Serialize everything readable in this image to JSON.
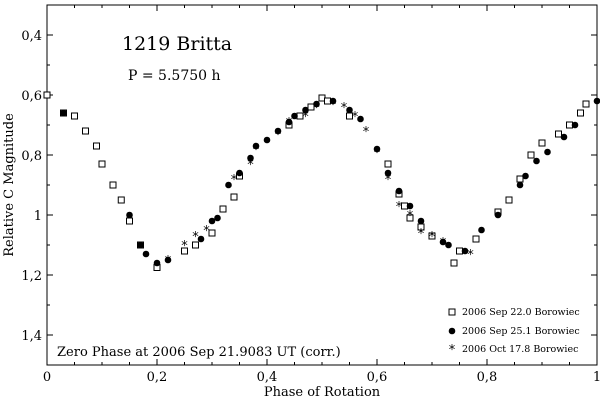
{
  "chart_data": {
    "type": "scatter",
    "title": "1219 Britta",
    "subtitle": "P = 5.5750 h",
    "xlabel": "Phase of Rotation",
    "ylabel": "Relative C Magnitude",
    "xlim": [
      0,
      1
    ],
    "ylim": [
      0.3,
      1.5
    ],
    "y_inverted": true,
    "x_ticks": [
      "0",
      "0,2",
      "0,4",
      "0,6",
      "0,8",
      "1"
    ],
    "x_tick_values": [
      0,
      0.2,
      0.4,
      0.6,
      0.8,
      1
    ],
    "y_ticks": [
      "0,4",
      "0,6",
      "0,8",
      "1",
      "1,2",
      "1,4"
    ],
    "y_tick_values": [
      0.4,
      0.6,
      0.8,
      1.0,
      1.2,
      1.4
    ],
    "grid": false,
    "legend_position": "bottom-right",
    "annotation": "Zero Phase at 2006 Sep 21.9083 UT (corr.)",
    "series": [
      {
        "name": "2006 Sep 22.0 Borowiec",
        "marker": "open-square",
        "x": [
          0.0,
          0.03,
          0.05,
          0.07,
          0.09,
          0.1,
          0.12,
          0.135,
          0.15,
          0.17,
          0.2,
          0.25,
          0.27,
          0.3,
          0.32,
          0.34,
          0.35,
          0.44,
          0.46,
          0.48,
          0.5,
          0.51,
          0.55,
          0.62,
          0.64,
          0.65,
          0.66,
          0.68,
          0.7,
          0.74,
          0.75,
          0.78,
          0.82,
          0.84,
          0.86,
          0.88,
          0.9,
          0.93,
          0.95,
          0.97,
          0.98
        ],
        "y": [
          0.6,
          0.66,
          0.67,
          0.72,
          0.77,
          0.83,
          0.9,
          0.95,
          1.02,
          1.1,
          1.175,
          1.12,
          1.1,
          1.06,
          0.98,
          0.94,
          0.87,
          0.7,
          0.67,
          0.64,
          0.61,
          0.62,
          0.67,
          0.83,
          0.93,
          0.97,
          1.01,
          1.04,
          1.07,
          1.16,
          1.12,
          1.08,
          0.99,
          0.95,
          0.88,
          0.8,
          0.76,
          0.73,
          0.7,
          0.66,
          0.63
        ]
      },
      {
        "name": "2006 Sep 25.1 Borowiec",
        "marker": "filled-circle",
        "x": [
          0.03,
          0.15,
          0.17,
          0.18,
          0.2,
          0.22,
          0.28,
          0.3,
          0.31,
          0.33,
          0.35,
          0.37,
          0.38,
          0.4,
          0.42,
          0.44,
          0.45,
          0.47,
          0.49,
          0.52,
          0.55,
          0.57,
          0.6,
          0.62,
          0.64,
          0.66,
          0.68,
          0.72,
          0.73,
          0.76,
          0.79,
          0.82,
          0.86,
          0.87,
          0.89,
          0.91,
          0.94,
          0.96,
          1.0
        ],
        "y": [
          0.66,
          1.0,
          1.1,
          1.13,
          1.16,
          1.15,
          1.08,
          1.02,
          1.01,
          0.9,
          0.86,
          0.81,
          0.77,
          0.75,
          0.72,
          0.69,
          0.67,
          0.65,
          0.63,
          0.62,
          0.65,
          0.68,
          0.78,
          0.86,
          0.92,
          0.97,
          1.02,
          1.09,
          1.1,
          1.12,
          1.05,
          1.0,
          0.9,
          0.87,
          0.82,
          0.79,
          0.74,
          0.7,
          0.62
        ]
      },
      {
        "name": "2006 Oct 17.8 Borowiec",
        "marker": "asterisk",
        "x": [
          0.22,
          0.25,
          0.27,
          0.29,
          0.34,
          0.37,
          0.38,
          0.42,
          0.44,
          0.47,
          0.49,
          0.52,
          0.54,
          0.56,
          0.58,
          0.6,
          0.62,
          0.64,
          0.66,
          0.68,
          0.7,
          0.72,
          0.77
        ],
        "y": [
          1.15,
          1.1,
          1.07,
          1.05,
          0.88,
          0.83,
          0.78,
          0.73,
          0.69,
          0.67,
          0.64,
          0.63,
          0.64,
          0.67,
          0.72,
          0.79,
          0.88,
          0.97,
          1.0,
          1.06,
          1.07,
          1.09,
          1.13
        ]
      }
    ]
  }
}
